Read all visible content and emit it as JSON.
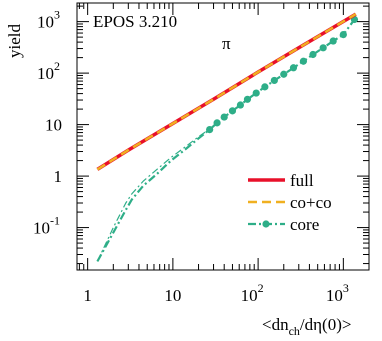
{
  "chart_data": {
    "type": "line",
    "title": "EPOS 3.210",
    "particle_label": "π",
    "xlabel": "<dn_ch/dη(0)>",
    "ylabel": "yield",
    "xscale": "log",
    "yscale": "log",
    "xlim": [
      0.75,
      2000
    ],
    "ylim": [
      0.015,
      2300
    ],
    "grid": false,
    "legend_position": "lower-right",
    "x_ticks": [
      {
        "base": "1",
        "exp": ""
      },
      {
        "base": "10",
        "exp": ""
      },
      {
        "base": "10",
        "exp": "2"
      },
      {
        "base": "10",
        "exp": "3"
      }
    ],
    "y_ticks": [
      {
        "base": "10",
        "exp": "-1"
      },
      {
        "base": "1",
        "exp": ""
      },
      {
        "base": "10",
        "exp": ""
      },
      {
        "base": "10",
        "exp": "2"
      },
      {
        "base": "10",
        "exp": "3"
      }
    ],
    "colors": {
      "full": "#e8102a",
      "coco": "#f0b020",
      "core": "#2eae88"
    },
    "series": [
      {
        "name": "full",
        "style": "solid-thick",
        "x": [
          1.3,
          3,
          10,
          30,
          100,
          300,
          1400
        ],
        "y": [
          1.35,
          3.2,
          10.5,
          31,
          105,
          310,
          1400
        ]
      },
      {
        "name": "co+co",
        "style": "dashed",
        "x": [
          1.3,
          3,
          10,
          30,
          100,
          300,
          1400
        ],
        "y": [
          1.35,
          3.2,
          10.5,
          31,
          105,
          310,
          1400
        ]
      },
      {
        "name": "core",
        "style": "dash-dot-markers",
        "x": [
          1.3,
          2.0,
          2.8,
          3.3,
          4.5,
          6.5,
          9.5,
          14,
          20,
          27,
          33,
          40,
          50,
          62,
          75,
          95,
          120,
          155,
          200,
          260,
          340,
          440,
          580,
          760,
          1000,
          1350
        ],
        "y": [
          0.022,
          0.08,
          0.22,
          0.35,
          0.65,
          1.1,
          2.0,
          3.3,
          5.4,
          8.0,
          10.8,
          14,
          18.5,
          24,
          31,
          41,
          54,
          72,
          95,
          127,
          170,
          230,
          310,
          420,
          560,
          1100
        ]
      },
      {
        "name": "core-alt",
        "style": "dash-dot",
        "legend": false,
        "x": [
          1.3,
          2.0,
          2.8,
          3.3,
          4.5,
          6.5,
          9.5,
          14,
          20,
          27
        ],
        "y": [
          0.022,
          0.1,
          0.3,
          0.45,
          0.8,
          1.35,
          2.3,
          3.7,
          5.8,
          8.2
        ]
      }
    ],
    "legend": [
      {
        "label": "full",
        "series": "full"
      },
      {
        "label": "co+co",
        "series": "co+co"
      },
      {
        "label": "core",
        "series": "core"
      }
    ]
  }
}
